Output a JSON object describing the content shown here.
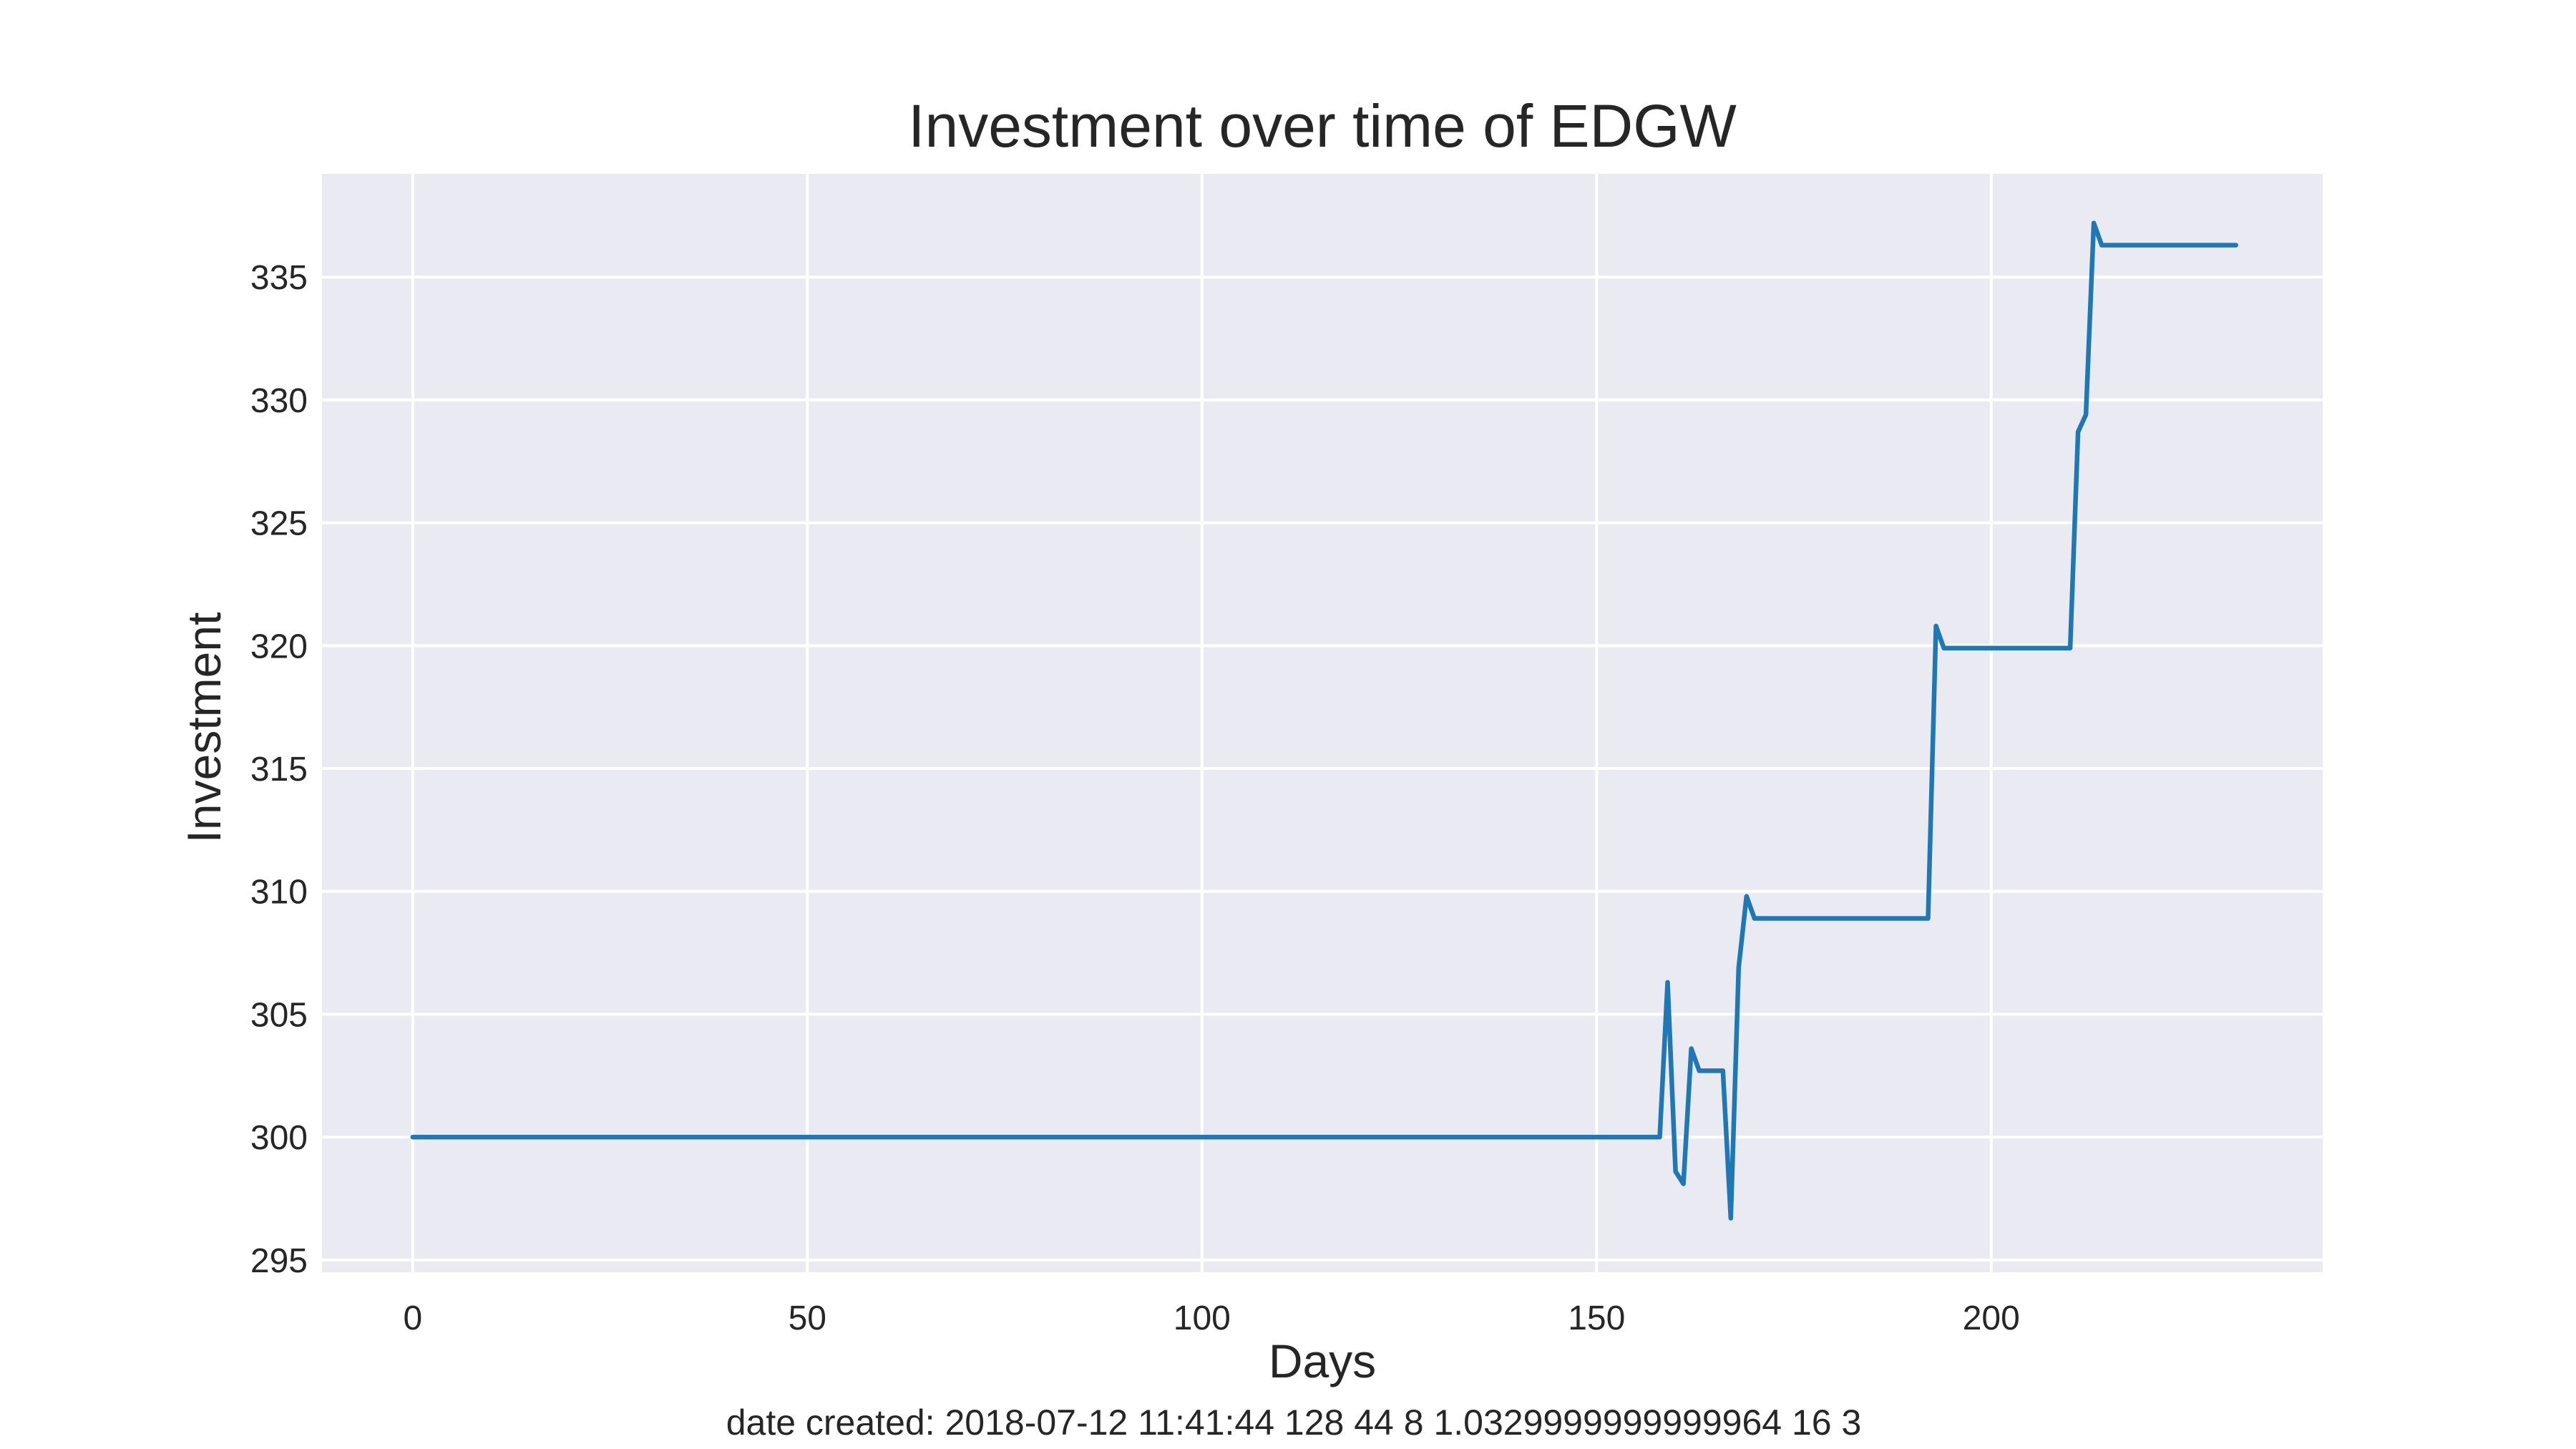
{
  "chart_data": {
    "type": "line",
    "title": "Investment over time of EDGW",
    "xlabel": "Days",
    "ylabel": "Investment",
    "footer": "date created: 2018-07-12 11:41:44 128 44 8 1.0329999999999964 16 3",
    "xlim": [
      -11.5,
      242
    ],
    "ylim": [
      294.5,
      339.2
    ],
    "xticks": [
      0,
      50,
      100,
      150,
      200
    ],
    "yticks": [
      295,
      300,
      305,
      310,
      315,
      320,
      325,
      330,
      335
    ],
    "grid": true,
    "style": "seaborn-darkgrid",
    "colors": {
      "background": "#eaeaf2",
      "grid": "#ffffff",
      "line": "#1f77b4",
      "text": "#262626"
    },
    "series": [
      {
        "x": [
          0,
          158,
          159,
          160,
          161,
          162,
          163,
          164,
          165,
          166,
          167,
          168,
          169,
          170,
          171,
          192,
          193,
          194,
          210,
          211,
          212,
          213,
          214,
          215,
          231
        ],
        "y": [
          300,
          300,
          306.3,
          298.6,
          298.1,
          303.6,
          302.7,
          302.7,
          302.7,
          302.7,
          296.7,
          306.9,
          309.8,
          308.9,
          308.9,
          308.9,
          320.8,
          319.9,
          319.9,
          328.7,
          329.4,
          337.2,
          336.3,
          336.3,
          336.3
        ]
      }
    ]
  }
}
